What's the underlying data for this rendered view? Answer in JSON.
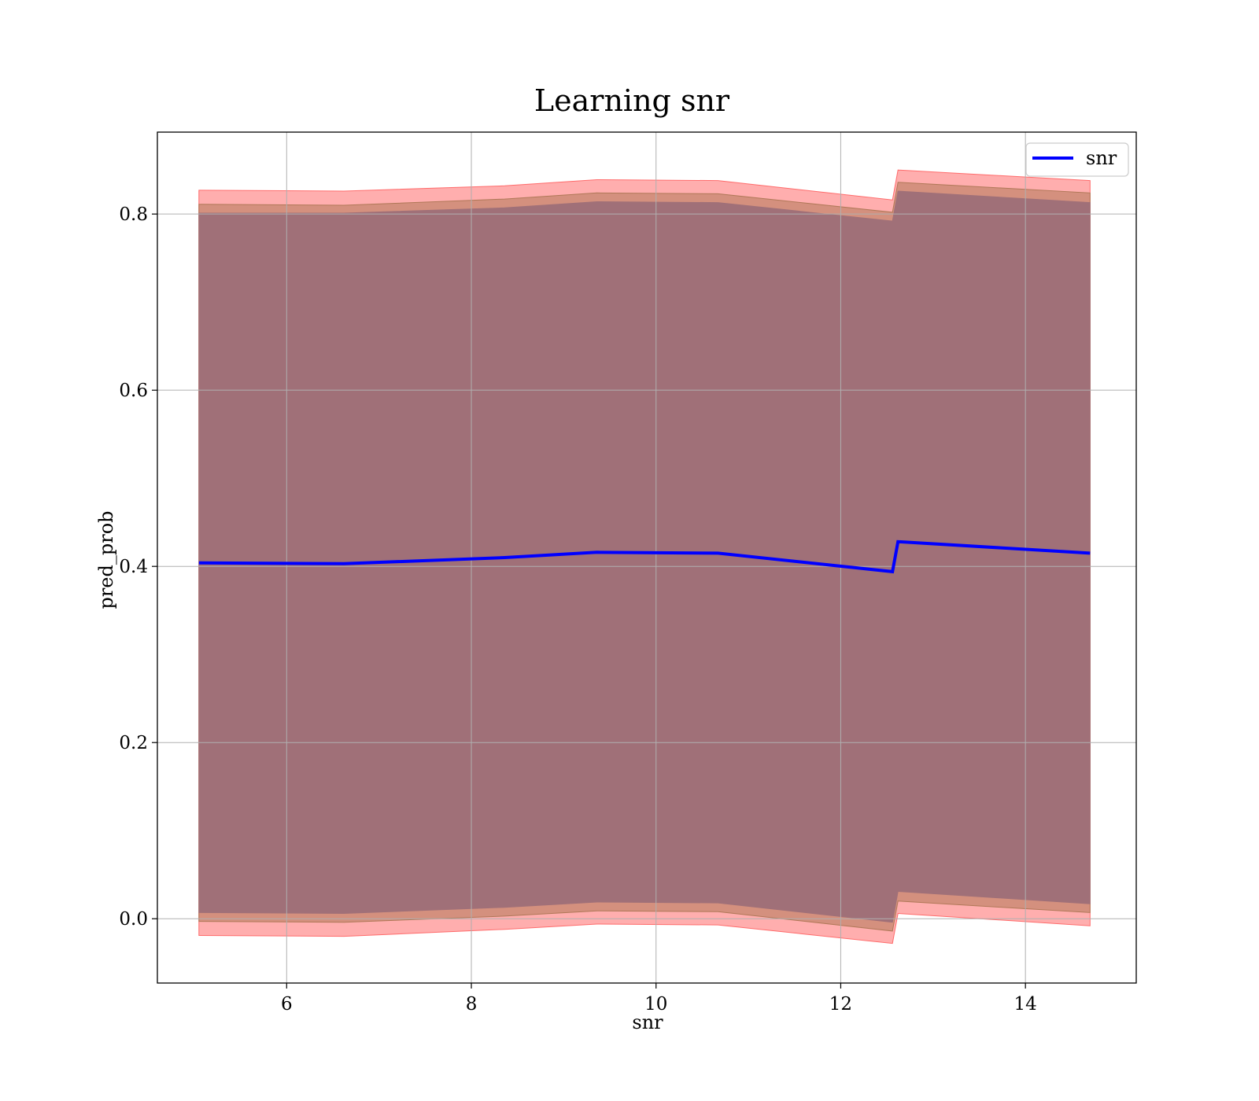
{
  "chart_data": {
    "type": "area",
    "title": "Learning snr",
    "xlabel": "snr",
    "ylabel": "pred_prob",
    "xlim": [
      4.6,
      15.2
    ],
    "ylim": [
      -0.073,
      0.893
    ],
    "xticks": [
      6,
      8,
      10,
      12,
      14
    ],
    "yticks": [
      0.0,
      0.2,
      0.4,
      0.6,
      0.8
    ],
    "grid": true,
    "legend": {
      "position": "top-right",
      "entries": [
        "snr"
      ]
    },
    "x": [
      5.05,
      6.62,
      8.36,
      9.36,
      10.67,
      12.56,
      12.62,
      14.7
    ],
    "series": [
      {
        "name": "snr",
        "color": "#0000ff",
        "mean": [
          0.404,
          0.403,
          0.41,
          0.416,
          0.415,
          0.394,
          0.428,
          0.415
        ]
      }
    ],
    "bands": [
      {
        "label": "outer",
        "color": "#ff6b6b",
        "upper": [
          0.827,
          0.826,
          0.832,
          0.839,
          0.838,
          0.816,
          0.85,
          0.838
        ],
        "lower": [
          -0.019,
          -0.02,
          -0.012,
          -0.006,
          -0.007,
          -0.028,
          0.006,
          -0.008
        ]
      },
      {
        "label": "middle",
        "color": "#b07858",
        "upper": [
          0.811,
          0.81,
          0.817,
          0.824,
          0.823,
          0.802,
          0.836,
          0.824
        ],
        "lower": [
          -0.003,
          -0.004,
          0.003,
          0.009,
          0.008,
          -0.014,
          0.02,
          0.007
        ]
      },
      {
        "label": "inner",
        "color": "#a07078",
        "upper": [
          0.801,
          0.801,
          0.807,
          0.814,
          0.813,
          0.792,
          0.826,
          0.813
        ],
        "lower": [
          0.007,
          0.006,
          0.013,
          0.019,
          0.018,
          -0.004,
          0.031,
          0.017
        ]
      }
    ]
  }
}
